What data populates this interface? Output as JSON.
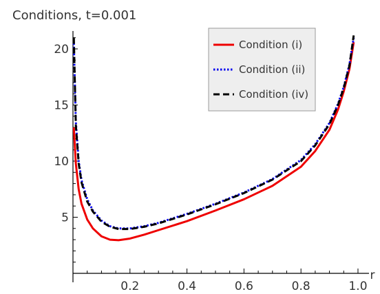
{
  "chart_data": {
    "type": "line",
    "title": "Conditions, t=0.001",
    "xlabel": "r",
    "ylabel": "",
    "xlim": [
      0.0,
      1.0
    ],
    "ylim": [
      0,
      21.5
    ],
    "x_ticks": [
      0.2,
      0.4,
      0.6,
      0.8,
      1.0
    ],
    "x_tick_labels": [
      "0.2",
      "0.4",
      "0.6",
      "0.8",
      "1.0"
    ],
    "y_ticks": [
      5,
      10,
      15,
      20
    ],
    "y_tick_labels": [
      "5",
      "10",
      "15",
      "20"
    ],
    "grid": false,
    "legend_position": "top-right",
    "series": [
      {
        "name": "Condition (i)",
        "color": "#ee0000",
        "style": "solid",
        "x": [
          0.003,
          0.01,
          0.02,
          0.03,
          0.05,
          0.07,
          0.1,
          0.13,
          0.16,
          0.2,
          0.25,
          0.3,
          0.4,
          0.5,
          0.6,
          0.7,
          0.8,
          0.85,
          0.9,
          0.93,
          0.95,
          0.97,
          0.985
        ],
        "y": [
          13.0,
          9.8,
          7.5,
          6.2,
          4.8,
          4.0,
          3.3,
          3.0,
          2.95,
          3.1,
          3.45,
          3.85,
          4.65,
          5.6,
          6.6,
          7.8,
          9.5,
          10.9,
          12.8,
          14.6,
          16.2,
          18.2,
          20.6
        ]
      },
      {
        "name": "Condition (ii)",
        "color": "#0000ee",
        "style": "dotted",
        "x": [
          0.003,
          0.01,
          0.02,
          0.03,
          0.05,
          0.07,
          0.1,
          0.13,
          0.16,
          0.2,
          0.25,
          0.3,
          0.4,
          0.5,
          0.6,
          0.7,
          0.8,
          0.85,
          0.9,
          0.93,
          0.95,
          0.97,
          0.985
        ],
        "y": [
          20.5,
          13.5,
          10.0,
          8.3,
          6.6,
          5.6,
          4.7,
          4.2,
          4.0,
          4.0,
          4.2,
          4.5,
          5.3,
          6.2,
          7.2,
          8.4,
          10.1,
          11.5,
          13.4,
          15.1,
          16.6,
          18.6,
          21.0
        ]
      },
      {
        "name": "Condition (iv)",
        "color": "#000000",
        "style": "dashed",
        "x": [
          0.003,
          0.01,
          0.02,
          0.03,
          0.05,
          0.07,
          0.1,
          0.13,
          0.16,
          0.2,
          0.25,
          0.3,
          0.4,
          0.5,
          0.6,
          0.7,
          0.8,
          0.85,
          0.9,
          0.93,
          0.95,
          0.97,
          0.985
        ],
        "y": [
          21.0,
          13.2,
          9.8,
          8.1,
          6.4,
          5.5,
          4.6,
          4.15,
          3.95,
          3.95,
          4.15,
          4.45,
          5.25,
          6.15,
          7.15,
          8.35,
          10.0,
          11.4,
          13.3,
          15.0,
          16.5,
          18.5,
          21.2
        ]
      }
    ]
  }
}
